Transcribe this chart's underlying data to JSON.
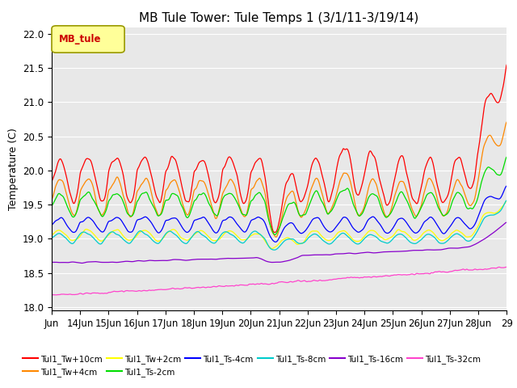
{
  "title": "MB Tule Tower: Tule Temps 1 (3/1/11-3/19/14)",
  "ylabel": "Temperature (C)",
  "ylim": [
    17.95,
    22.1
  ],
  "xlim": [
    0,
    16
  ],
  "background_color": "#ffffff",
  "plot_bg_color": "#e8e8e8",
  "grid_color": "#ffffff",
  "legend_box_color": "#ffff99",
  "legend_box_edge": "#999900",
  "legend_label_color": "#cc0000",
  "legend_label": "MB_tule",
  "xtick_labels": [
    "Jun",
    "14Jun",
    "15Jun",
    "16Jun",
    "17Jun",
    "18Jun",
    "19Jun",
    "20Jun",
    "21Jun",
    "22Jun",
    "23Jun",
    "24Jun",
    "25Jun",
    "26Jun",
    "27Jun",
    "28Jun",
    "29"
  ],
  "series_names": [
    "Tul1_Tw+10cm",
    "Tul1_Tw+4cm",
    "Tul1_Tw+2cm",
    "Tul1_Ts-2cm",
    "Tul1_Ts-4cm",
    "Tul1_Ts-8cm",
    "Tul1_Ts-16cm",
    "Tul1_Ts-32cm"
  ],
  "series_colors": [
    "#ff0000",
    "#ff8800",
    "#ffff00",
    "#00dd00",
    "#0000ff",
    "#00cccc",
    "#8800cc",
    "#ff44cc"
  ],
  "title_fontsize": 11,
  "axis_fontsize": 9,
  "tick_fontsize": 8.5,
  "legend_fontsize": 7.5
}
